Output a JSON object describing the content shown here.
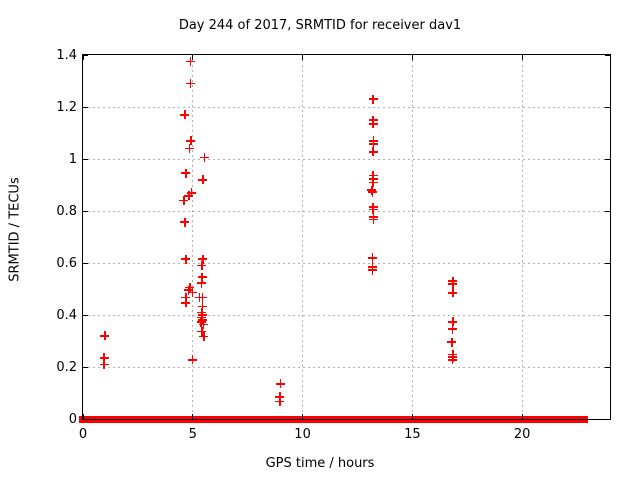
{
  "chart_data": {
    "type": "scatter",
    "title": "Day 244 of 2017, SRMTID for receiver dav1",
    "xlabel": "GPS time / hours",
    "ylabel": "SRMTID / TECUs",
    "xlim": [
      0,
      24
    ],
    "ylim": [
      0,
      1.4
    ],
    "xticks": [
      0,
      5,
      10,
      15,
      20
    ],
    "xtick_labels": [
      "0",
      "5",
      "10",
      "15",
      "20"
    ],
    "yticks": [
      0,
      0.2,
      0.4,
      0.6,
      0.8,
      1.0,
      1.2,
      1.4
    ],
    "ytick_labels": [
      "0",
      "0.2",
      "0.4",
      "0.6",
      "0.8",
      "1",
      "1.2",
      "1.4"
    ],
    "grid": true,
    "legend_position": "none",
    "marker": "plus",
    "colors": {
      "marker": "#ff0000",
      "grid": "#b1b1b1",
      "frame": "#000000",
      "background": "#ffffff"
    },
    "series": [
      {
        "name": "SRMTID",
        "points": [
          [
            1.0,
            0.32
          ],
          [
            0.97,
            0.235
          ],
          [
            0.97,
            0.21
          ],
          [
            4.89,
            1.375
          ],
          [
            4.89,
            1.29
          ],
          [
            4.64,
            1.17
          ],
          [
            4.91,
            1.07
          ],
          [
            4.86,
            1.04
          ],
          [
            5.54,
            1.005
          ],
          [
            4.69,
            0.945
          ],
          [
            5.46,
            0.92
          ],
          [
            4.94,
            0.87
          ],
          [
            4.82,
            0.858
          ],
          [
            4.59,
            0.84
          ],
          [
            4.64,
            0.757
          ],
          [
            4.69,
            0.615
          ],
          [
            5.46,
            0.615
          ],
          [
            5.41,
            0.59
          ],
          [
            5.43,
            0.545
          ],
          [
            5.39,
            0.522
          ],
          [
            4.87,
            0.505
          ],
          [
            4.8,
            0.495
          ],
          [
            4.98,
            0.486
          ],
          [
            4.69,
            0.468
          ],
          [
            5.3,
            0.468
          ],
          [
            5.45,
            0.468
          ],
          [
            4.69,
            0.447
          ],
          [
            5.44,
            0.432
          ],
          [
            5.41,
            0.409
          ],
          [
            5.44,
            0.4
          ],
          [
            5.41,
            0.391
          ],
          [
            5.45,
            0.381
          ],
          [
            5.38,
            0.372
          ],
          [
            5.48,
            0.363
          ],
          [
            5.41,
            0.336
          ],
          [
            5.5,
            0.317
          ],
          [
            4.98,
            0.227
          ],
          [
            9.0,
            0.135
          ],
          [
            8.97,
            0.085
          ],
          [
            8.97,
            0.068
          ],
          [
            13.21,
            1.23
          ],
          [
            13.21,
            1.15
          ],
          [
            13.21,
            1.135
          ],
          [
            13.23,
            1.07
          ],
          [
            13.23,
            1.058
          ],
          [
            13.21,
            1.028
          ],
          [
            13.21,
            0.936
          ],
          [
            13.21,
            0.922
          ],
          [
            13.21,
            0.909
          ],
          [
            13.16,
            0.88
          ],
          [
            13.18,
            0.872
          ],
          [
            13.21,
            0.815
          ],
          [
            13.21,
            0.805
          ],
          [
            13.23,
            0.778
          ],
          [
            13.23,
            0.768
          ],
          [
            13.18,
            0.62
          ],
          [
            13.18,
            0.585
          ],
          [
            13.18,
            0.572
          ],
          [
            16.85,
            0.53
          ],
          [
            16.85,
            0.52
          ],
          [
            16.85,
            0.485
          ],
          [
            16.85,
            0.374
          ],
          [
            16.83,
            0.345
          ],
          [
            16.8,
            0.295
          ],
          [
            16.85,
            0.248
          ],
          [
            16.85,
            0.238
          ],
          [
            16.83,
            0.228
          ]
        ]
      }
    ],
    "baseline_band_y": 0,
    "baseline_segments": [
      [
        0,
        4.57
      ],
      [
        4.7,
        4.96
      ],
      [
        5.02,
        5.19
      ],
      [
        5.28,
        7.88
      ],
      [
        8.15,
        13.16
      ],
      [
        13.3,
        16.8
      ],
      [
        16.89,
        22.81
      ]
    ]
  }
}
